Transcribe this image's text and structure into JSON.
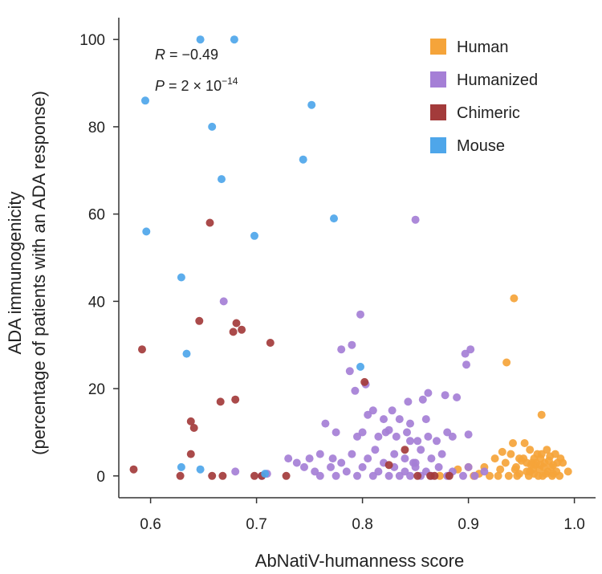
{
  "chart_data": {
    "type": "scatter",
    "xlabel": "AbNatiV-humanness score",
    "ylabel_line1": "ADA immunogenicity",
    "ylabel_line2": "(percentage of patients with an ADA response)",
    "xlim": [
      0.57,
      1.02
    ],
    "ylim": [
      -5,
      105
    ],
    "xticks": [
      0.6,
      0.7,
      0.8,
      0.9,
      1.0
    ],
    "xtick_labels": [
      "0.6",
      "0.7",
      "0.8",
      "0.9",
      "1.0"
    ],
    "yticks": [
      0,
      20,
      40,
      60,
      80,
      100
    ],
    "ytick_labels": [
      "0",
      "20",
      "40",
      "60",
      "80",
      "100"
    ],
    "annotation": {
      "r_var": "R",
      "r_text": " = −0.49",
      "p_var": "P",
      "p_text": " = 2 × 10",
      "p_exp": "−14"
    },
    "legend": {
      "position": "top-right"
    },
    "series": [
      {
        "name": "Human",
        "color": "#F5A43A",
        "points": [
          [
            0.943,
            40.7
          ],
          [
            0.936,
            26
          ],
          [
            0.969,
            14
          ],
          [
            0.93,
            1.5
          ],
          [
            0.935,
            3
          ],
          [
            0.94,
            5
          ],
          [
            0.942,
            7.5
          ],
          [
            0.945,
            2
          ],
          [
            0.948,
            0.5
          ],
          [
            0.952,
            4
          ],
          [
            0.955,
            1
          ],
          [
            0.958,
            6
          ],
          [
            0.96,
            3
          ],
          [
            0.962,
            0.5
          ],
          [
            0.963,
            2.5
          ],
          [
            0.965,
            5
          ],
          [
            0.967,
            1.5
          ],
          [
            0.968,
            4
          ],
          [
            0.97,
            0
          ],
          [
            0.972,
            3
          ],
          [
            0.974,
            6
          ],
          [
            0.975,
            1
          ],
          [
            0.977,
            4.5
          ],
          [
            0.978,
            2
          ],
          [
            0.98,
            0.5
          ],
          [
            0.982,
            5
          ],
          [
            0.984,
            3
          ],
          [
            0.953,
            7.5
          ],
          [
            0.957,
            0
          ],
          [
            0.961,
            1.5
          ],
          [
            0.966,
            0
          ],
          [
            0.971,
            2
          ],
          [
            0.973,
            0.5
          ],
          [
            0.976,
            3.5
          ],
          [
            0.979,
            0
          ],
          [
            0.983,
            1
          ],
          [
            0.986,
            0
          ],
          [
            0.989,
            3
          ],
          [
            0.994,
            1
          ],
          [
            0.91,
            0.5
          ],
          [
            0.915,
            2
          ],
          [
            0.92,
            0
          ],
          [
            0.925,
            4
          ],
          [
            0.928,
            0
          ],
          [
            0.932,
            5.5
          ],
          [
            0.938,
            0
          ],
          [
            0.944,
            1.5
          ],
          [
            0.95,
            3.5
          ],
          [
            0.959,
            2.5
          ],
          [
            0.964,
            3
          ],
          [
            0.969,
            5
          ],
          [
            0.962,
            4
          ],
          [
            0.955,
            3
          ],
          [
            0.948,
            4
          ],
          [
            0.873,
            0
          ],
          [
            0.89,
            1.5
          ],
          [
            0.9,
            2
          ],
          [
            0.905,
            0
          ],
          [
            0.98,
            2.5
          ],
          [
            0.987,
            4
          ],
          [
            0.946,
            0
          ],
          [
            0.958,
            1
          ],
          [
            0.968,
            2.5
          ]
        ]
      },
      {
        "name": "Humanized",
        "color": "#A57FD6",
        "points": [
          [
            0.85,
            58.7
          ],
          [
            0.669,
            40
          ],
          [
            0.798,
            37
          ],
          [
            0.79,
            30
          ],
          [
            0.78,
            29
          ],
          [
            0.902,
            29
          ],
          [
            0.897,
            28
          ],
          [
            0.898,
            25.5
          ],
          [
            0.788,
            24
          ],
          [
            0.803,
            21
          ],
          [
            0.793,
            19.5
          ],
          [
            0.862,
            19
          ],
          [
            0.857,
            17.5
          ],
          [
            0.843,
            17
          ],
          [
            0.878,
            18.5
          ],
          [
            0.889,
            18
          ],
          [
            0.81,
            15
          ],
          [
            0.82,
            13
          ],
          [
            0.828,
            15
          ],
          [
            0.835,
            13
          ],
          [
            0.845,
            12
          ],
          [
            0.765,
            12
          ],
          [
            0.775,
            10
          ],
          [
            0.795,
            9
          ],
          [
            0.8,
            10
          ],
          [
            0.815,
            9
          ],
          [
            0.822,
            10
          ],
          [
            0.832,
            9
          ],
          [
            0.842,
            10
          ],
          [
            0.852,
            8
          ],
          [
            0.862,
            9
          ],
          [
            0.87,
            8
          ],
          [
            0.88,
            10
          ],
          [
            0.885,
            9
          ],
          [
            0.9,
            9.5
          ],
          [
            0.76,
            5
          ],
          [
            0.772,
            4
          ],
          [
            0.78,
            3
          ],
          [
            0.79,
            5
          ],
          [
            0.805,
            4
          ],
          [
            0.812,
            6
          ],
          [
            0.82,
            3
          ],
          [
            0.83,
            5
          ],
          [
            0.84,
            4
          ],
          [
            0.848,
            3
          ],
          [
            0.855,
            6
          ],
          [
            0.865,
            4
          ],
          [
            0.875,
            5
          ],
          [
            0.73,
            4
          ],
          [
            0.738,
            3
          ],
          [
            0.745,
            2
          ],
          [
            0.75,
            4
          ],
          [
            0.755,
            1
          ],
          [
            0.76,
            0
          ],
          [
            0.77,
            2
          ],
          [
            0.775,
            0
          ],
          [
            0.785,
            1
          ],
          [
            0.795,
            0
          ],
          [
            0.8,
            2
          ],
          [
            0.81,
            0
          ],
          [
            0.815,
            1
          ],
          [
            0.825,
            0
          ],
          [
            0.83,
            2
          ],
          [
            0.835,
            0
          ],
          [
            0.84,
            1
          ],
          [
            0.845,
            0
          ],
          [
            0.85,
            2
          ],
          [
            0.855,
            0
          ],
          [
            0.86,
            1
          ],
          [
            0.865,
            0
          ],
          [
            0.872,
            2
          ],
          [
            0.88,
            0
          ],
          [
            0.885,
            1
          ],
          [
            0.895,
            0
          ],
          [
            0.9,
            2
          ],
          [
            0.906,
            0
          ],
          [
            0.915,
            1
          ],
          [
            0.68,
            1
          ],
          [
            0.705,
            0
          ],
          [
            0.71,
            0.5
          ],
          [
            0.85,
            3
          ],
          [
            0.86,
            13
          ],
          [
            0.805,
            14
          ],
          [
            0.845,
            8
          ],
          [
            0.825,
            10.5
          ]
        ]
      },
      {
        "name": "Chimeric",
        "color": "#A33B3B",
        "points": [
          [
            0.656,
            58
          ],
          [
            0.646,
            35.5
          ],
          [
            0.681,
            35
          ],
          [
            0.678,
            33
          ],
          [
            0.686,
            33.5
          ],
          [
            0.713,
            30.5
          ],
          [
            0.592,
            29
          ],
          [
            0.802,
            21.5
          ],
          [
            0.68,
            17.5
          ],
          [
            0.666,
            17
          ],
          [
            0.638,
            12.5
          ],
          [
            0.641,
            11
          ],
          [
            0.638,
            5
          ],
          [
            0.584,
            1.5
          ],
          [
            0.628,
            0
          ],
          [
            0.658,
            0
          ],
          [
            0.668,
            0
          ],
          [
            0.698,
            0
          ],
          [
            0.728,
            0
          ],
          [
            0.705,
            0
          ],
          [
            0.84,
            6
          ],
          [
            0.825,
            2.5
          ],
          [
            0.852,
            0
          ],
          [
            0.864,
            0
          ],
          [
            0.868,
            0
          ],
          [
            0.882,
            0
          ]
        ]
      },
      {
        "name": "Mouse",
        "color": "#4EA6EA",
        "points": [
          [
            0.647,
            100
          ],
          [
            0.679,
            100
          ],
          [
            0.595,
            86
          ],
          [
            0.752,
            85
          ],
          [
            0.658,
            80
          ],
          [
            0.744,
            72.5
          ],
          [
            0.667,
            68
          ],
          [
            0.773,
            59
          ],
          [
            0.596,
            56
          ],
          [
            0.698,
            55
          ],
          [
            0.629,
            45.5
          ],
          [
            0.634,
            28
          ],
          [
            0.798,
            25
          ],
          [
            0.629,
            2
          ],
          [
            0.647,
            1.5
          ],
          [
            0.708,
            0.5
          ]
        ]
      }
    ]
  }
}
